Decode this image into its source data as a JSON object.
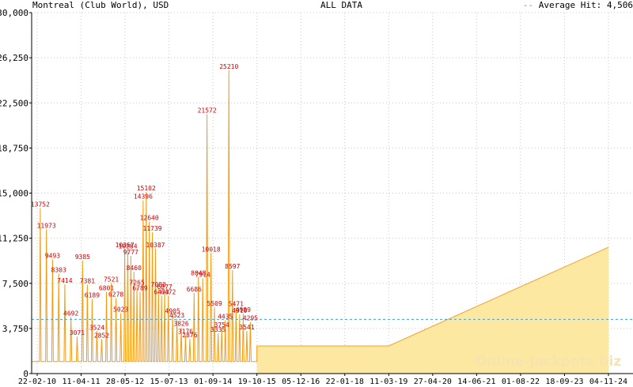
{
  "header": {
    "left": "Montreal (Club World), USD",
    "center": "ALL DATA",
    "right_prefix": "Average Hit: ",
    "right_value": "4,506"
  },
  "watermark": "Online-Jackpots.biz",
  "colors": {
    "spike_line": "#f39c12",
    "area_fill": "#fde8a2",
    "area_edge": "#f0a030",
    "label": "#cc0000",
    "average_line": "#4a9fc8",
    "grid": "#c8c8c8"
  },
  "chart_data": {
    "type": "area",
    "title": "ALL DATA",
    "xlabel": "",
    "ylabel": "",
    "ylim": [
      0,
      30000
    ],
    "yticks": [
      "0",
      "3,750",
      "7,500",
      "11,250",
      "15,000",
      "18,750",
      "22,500",
      "26,250",
      "30,000"
    ],
    "xticks": [
      "22-02-10",
      "11-04-11",
      "28-05-12",
      "15-07-13",
      "01-09-14",
      "19-10-15",
      "05-12-16",
      "22-01-18",
      "11-03-19",
      "27-04-20",
      "14-06-21",
      "01-08-22",
      "18-09-23",
      "04-11-24"
    ],
    "grid": true,
    "average": 4506,
    "baseline": 1000,
    "trend": [
      {
        "x": "19-10-15",
        "y": 2300
      },
      {
        "x": "11-03-19",
        "y": 2300
      },
      {
        "x": "04-11-24",
        "y": 10500
      }
    ],
    "labeled_hits": [
      {
        "x": "22-02-10",
        "y": 13752
      },
      {
        "x": "22-02-10",
        "y": 11973
      },
      {
        "x": "22-02-10",
        "y": 9493
      },
      {
        "x": "22-02-10",
        "y": 8303
      },
      {
        "x": "22-02-10",
        "y": 7414
      },
      {
        "x": "22-02-10",
        "y": 4692
      },
      {
        "x": "22-02-10",
        "y": 3071
      },
      {
        "x": "11-04-11",
        "y": 9385
      },
      {
        "x": "11-04-11",
        "y": 7381
      },
      {
        "x": "11-04-11",
        "y": 6189
      },
      {
        "x": "11-04-11",
        "y": 3524
      },
      {
        "x": "11-04-11",
        "y": 2852
      },
      {
        "x": "11-04-11",
        "y": 6801
      },
      {
        "x": "11-04-11",
        "y": 7521
      },
      {
        "x": "11-04-11",
        "y": 6278
      },
      {
        "x": "11-04-11",
        "y": 5023
      },
      {
        "x": "28-05-12",
        "y": 10367
      },
      {
        "x": "28-05-12",
        "y": 10284
      },
      {
        "x": "28-05-12",
        "y": 9777
      },
      {
        "x": "28-05-12",
        "y": 8460
      },
      {
        "x": "28-05-12",
        "y": 7265
      },
      {
        "x": "28-05-12",
        "y": 6789
      },
      {
        "x": "28-05-12",
        "y": 14396
      },
      {
        "x": "28-05-12",
        "y": 15102
      },
      {
        "x": "28-05-12",
        "y": 12640
      },
      {
        "x": "28-05-12",
        "y": 11739
      },
      {
        "x": "28-05-12",
        "y": 10387
      },
      {
        "x": "28-05-12",
        "y": 7080
      },
      {
        "x": "28-05-12",
        "y": 6473
      },
      {
        "x": "28-05-12",
        "y": 6877
      },
      {
        "x": "15-07-13",
        "y": 6472
      },
      {
        "x": "15-07-13",
        "y": 4905
      },
      {
        "x": "15-07-13",
        "y": 4523
      },
      {
        "x": "15-07-13",
        "y": 3826
      },
      {
        "x": "15-07-13",
        "y": 3176
      },
      {
        "x": "15-07-13",
        "y": 2876
      },
      {
        "x": "15-07-13",
        "y": 6686
      },
      {
        "x": "15-07-13",
        "y": 8048
      },
      {
        "x": "15-07-13",
        "y": 7914
      },
      {
        "x": "15-07-13",
        "y": 21572
      },
      {
        "x": "01-09-14",
        "y": 10018
      },
      {
        "x": "01-09-14",
        "y": 5509
      },
      {
        "x": "01-09-14",
        "y": 3335
      },
      {
        "x": "01-09-14",
        "y": 3754
      },
      {
        "x": "01-09-14",
        "y": 4435
      },
      {
        "x": "01-09-14",
        "y": 25210
      },
      {
        "x": "01-09-14",
        "y": 8597
      },
      {
        "x": "01-09-14",
        "y": 5471
      },
      {
        "x": "01-09-14",
        "y": 4919
      },
      {
        "x": "01-09-14",
        "y": 4989
      },
      {
        "x": "01-09-14",
        "y": 3541
      },
      {
        "x": "01-09-14",
        "y": 4295
      }
    ]
  }
}
